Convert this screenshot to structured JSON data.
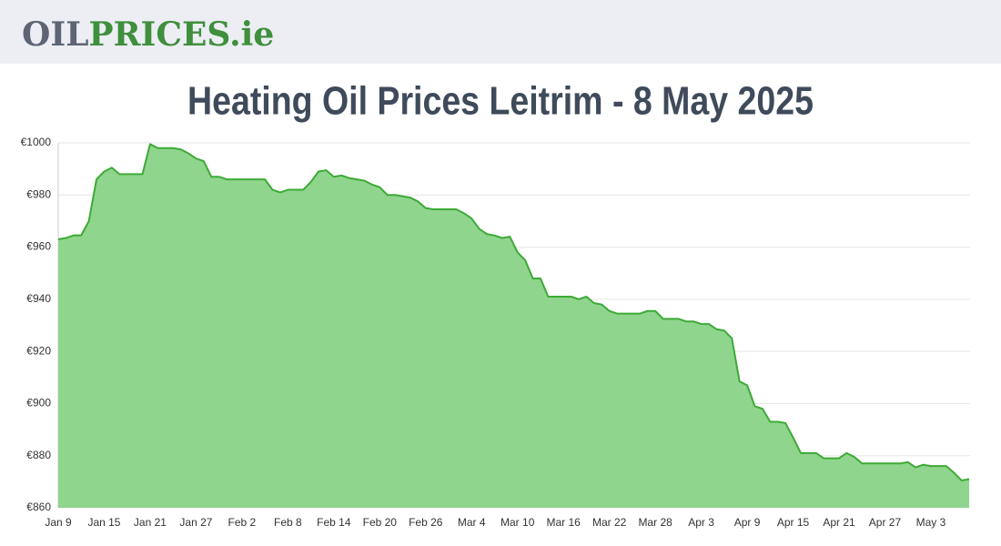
{
  "header": {
    "logo": {
      "part1": "OIL",
      "part2": "PRICES.ie"
    }
  },
  "chart_data": {
    "type": "area",
    "title": "Heating Oil Prices Leitrim - 8 May 2025",
    "categories": [
      "Jan 9",
      null,
      null,
      null,
      null,
      null,
      "Jan 15",
      null,
      null,
      null,
      null,
      null,
      "Jan 21",
      null,
      null,
      null,
      null,
      null,
      "Jan 27",
      null,
      null,
      null,
      null,
      null,
      "Feb 2",
      null,
      null,
      null,
      null,
      null,
      "Feb 8",
      null,
      null,
      null,
      null,
      null,
      "Feb 14",
      null,
      null,
      null,
      null,
      null,
      "Feb 20",
      null,
      null,
      null,
      null,
      null,
      "Feb 26",
      null,
      null,
      null,
      null,
      null,
      "Mar 4",
      null,
      null,
      null,
      null,
      null,
      "Mar 10",
      null,
      null,
      null,
      null,
      null,
      "Mar 16",
      null,
      null,
      null,
      null,
      null,
      "Mar 22",
      null,
      null,
      null,
      null,
      null,
      "Mar 28",
      null,
      null,
      null,
      null,
      null,
      "Apr 3",
      null,
      null,
      null,
      null,
      null,
      "Apr 9",
      null,
      null,
      null,
      null,
      null,
      "Apr 15",
      null,
      null,
      null,
      null,
      null,
      "Apr 21",
      null,
      null,
      null,
      null,
      null,
      "Apr 27",
      null,
      null,
      null,
      null,
      null,
      "May 3",
      null,
      null,
      null,
      null,
      null
    ],
    "values": [
      963,
      963.5,
      964.5,
      964.5,
      970,
      986,
      989,
      990.5,
      988,
      988,
      988,
      988,
      999.5,
      998,
      998,
      998,
      997.5,
      996,
      994,
      993,
      987,
      987,
      986,
      986,
      986,
      986,
      986,
      986,
      982,
      981,
      982,
      982,
      982,
      985,
      989,
      989.5,
      987,
      987.5,
      986.5,
      986,
      985.5,
      984,
      983,
      980,
      980,
      979.5,
      979,
      977.5,
      975,
      974.5,
      974.5,
      974.5,
      974.5,
      973,
      971,
      967,
      965,
      964.5,
      963.5,
      964,
      958,
      955,
      948,
      948,
      941,
      941,
      941,
      941,
      940,
      941,
      938.5,
      938,
      935.5,
      934.5,
      934.5,
      934.5,
      934.5,
      935.5,
      935.5,
      932.5,
      932.5,
      932.5,
      931.5,
      931.5,
      930.5,
      930.5,
      928.5,
      928,
      925,
      908.5,
      907,
      899,
      898,
      893,
      893,
      892.5,
      887,
      881,
      881,
      881,
      879,
      879,
      879,
      881,
      879.5,
      877,
      877,
      877,
      877,
      877,
      877,
      877.5,
      875.5,
      876.5,
      876,
      876,
      876,
      873.5,
      870.5,
      871
    ],
    "color": "#3daa36",
    "fill": "#90d58e",
    "ylim": [
      860,
      1000
    ],
    "yticks": [
      {
        "value": 860,
        "label": "€860"
      },
      {
        "value": 880,
        "label": "€880"
      },
      {
        "value": 900,
        "label": "€900"
      },
      {
        "value": 920,
        "label": "€920"
      },
      {
        "value": 940,
        "label": "€940"
      },
      {
        "value": 960,
        "label": "€960"
      },
      {
        "value": 980,
        "label": "€980"
      },
      {
        "value": 1000,
        "label": "€1000"
      }
    ],
    "grid": true
  }
}
